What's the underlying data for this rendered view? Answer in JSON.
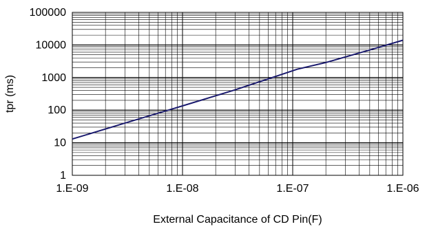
{
  "chart_data": {
    "type": "line",
    "xlabel": "External Capacitance of CD Pin(F)",
    "ylabel": "tpr (ms)",
    "x_scale": "log",
    "y_scale": "log",
    "xlim": [
      1e-09,
      1e-06
    ],
    "ylim": [
      1,
      100000
    ],
    "x_ticks": [
      "1.E-09",
      "1.E-08",
      "1.E-07",
      "1.E-06"
    ],
    "y_ticks": [
      "1",
      "10",
      "100",
      "1000",
      "10000",
      "100000"
    ],
    "grid": true,
    "line_color": "#1a1a6e",
    "series": [
      {
        "x": [
          1e-09,
          3e-09,
          1e-08,
          3e-08,
          1.1e-07,
          2e-07,
          5e-07,
          1e-06
        ],
        "values": [
          13,
          40,
          135,
          420,
          1800,
          2900,
          7000,
          14000
        ]
      }
    ]
  }
}
